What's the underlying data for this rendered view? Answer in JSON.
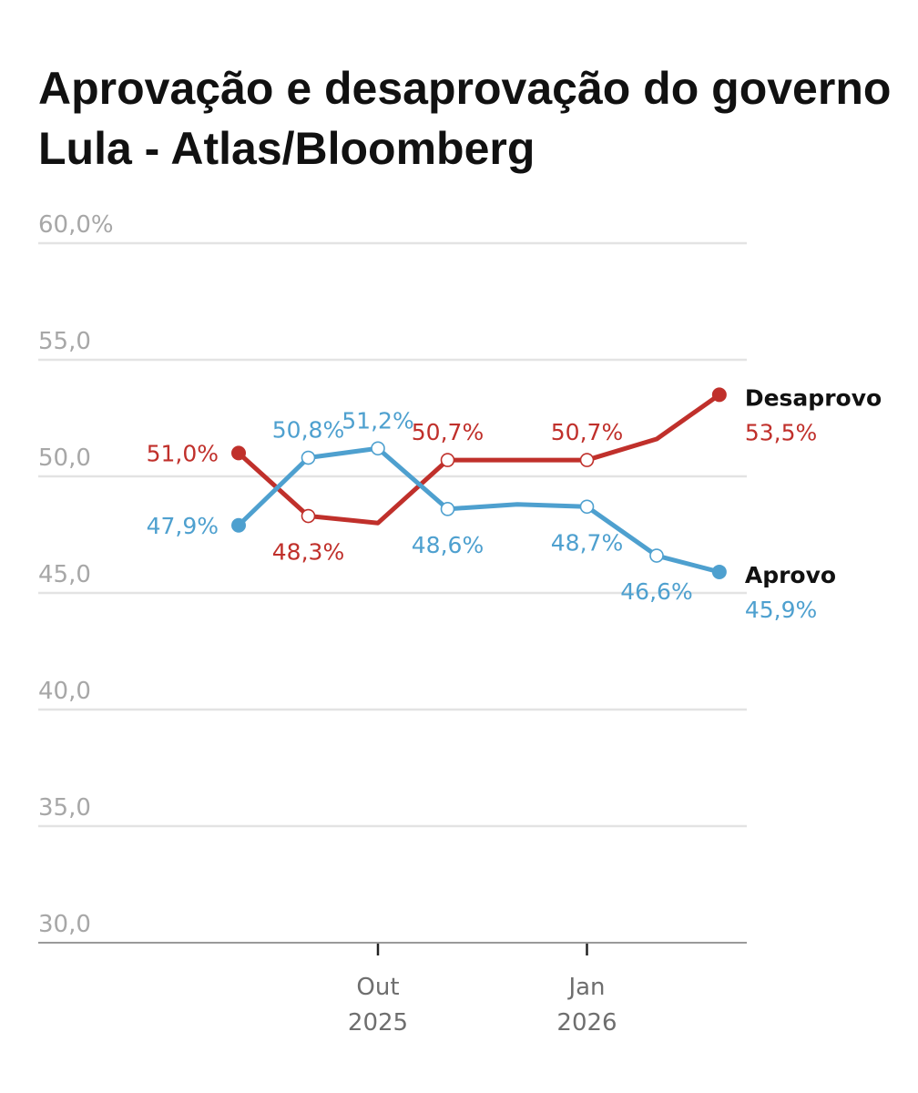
{
  "chart_data": {
    "type": "line",
    "title": "Aprovação e desaprovação do governo Lula - Atlas/Bloomberg",
    "y_ticks": [
      "60,0%",
      "55,0",
      "50,0",
      "45,0",
      "40,0",
      "35,0",
      "30,0"
    ],
    "ylim": [
      30,
      60
    ],
    "grid": true,
    "x_ticks": [
      {
        "label": "Out",
        "year": "2025",
        "x": 3.0
      },
      {
        "label": "Jan",
        "year": "2026",
        "x": 6.0
      }
    ],
    "xlim": [
      1.0,
      7.9
    ],
    "series": [
      {
        "name": "Desaprovo",
        "color": "#c0302b",
        "end_label": "53,5%",
        "points": [
          {
            "x": 1.0,
            "y": 51.0,
            "label": "51,0%",
            "label_pos": "left"
          },
          {
            "x": 2.0,
            "y": 48.3,
            "label": "48,3%",
            "label_pos": "below",
            "marker": "hollow"
          },
          {
            "x": 3.0,
            "y": 48.0
          },
          {
            "x": 4.0,
            "y": 50.7,
            "label": "50,7%",
            "label_pos": "above",
            "marker": "hollow"
          },
          {
            "x": 6.0,
            "y": 50.7,
            "label": "50,7%",
            "label_pos": "above",
            "marker": "hollow"
          },
          {
            "x": 7.0,
            "y": 51.6
          },
          {
            "x": 7.9,
            "y": 53.5,
            "marker": "filled"
          }
        ]
      },
      {
        "name": "Aprovo",
        "color": "#4ea0cf",
        "end_label": "45,9%",
        "points": [
          {
            "x": 1.0,
            "y": 47.9,
            "label": "47,9%",
            "label_pos": "left"
          },
          {
            "x": 2.0,
            "y": 50.8,
            "label": "50,8%",
            "label_pos": "above",
            "marker": "hollow"
          },
          {
            "x": 3.0,
            "y": 51.2,
            "label": "51,2%",
            "label_pos": "above",
            "marker": "hollow"
          },
          {
            "x": 4.0,
            "y": 48.6,
            "label": "48,6%",
            "label_pos": "below",
            "marker": "hollow"
          },
          {
            "x": 5.0,
            "y": 48.8
          },
          {
            "x": 6.0,
            "y": 48.7,
            "label": "48,7%",
            "label_pos": "below",
            "marker": "hollow"
          },
          {
            "x": 7.0,
            "y": 46.6,
            "label": "46,6%",
            "label_pos": "below",
            "marker": "hollow"
          },
          {
            "x": 7.9,
            "y": 45.9,
            "marker": "filled"
          }
        ]
      }
    ]
  }
}
